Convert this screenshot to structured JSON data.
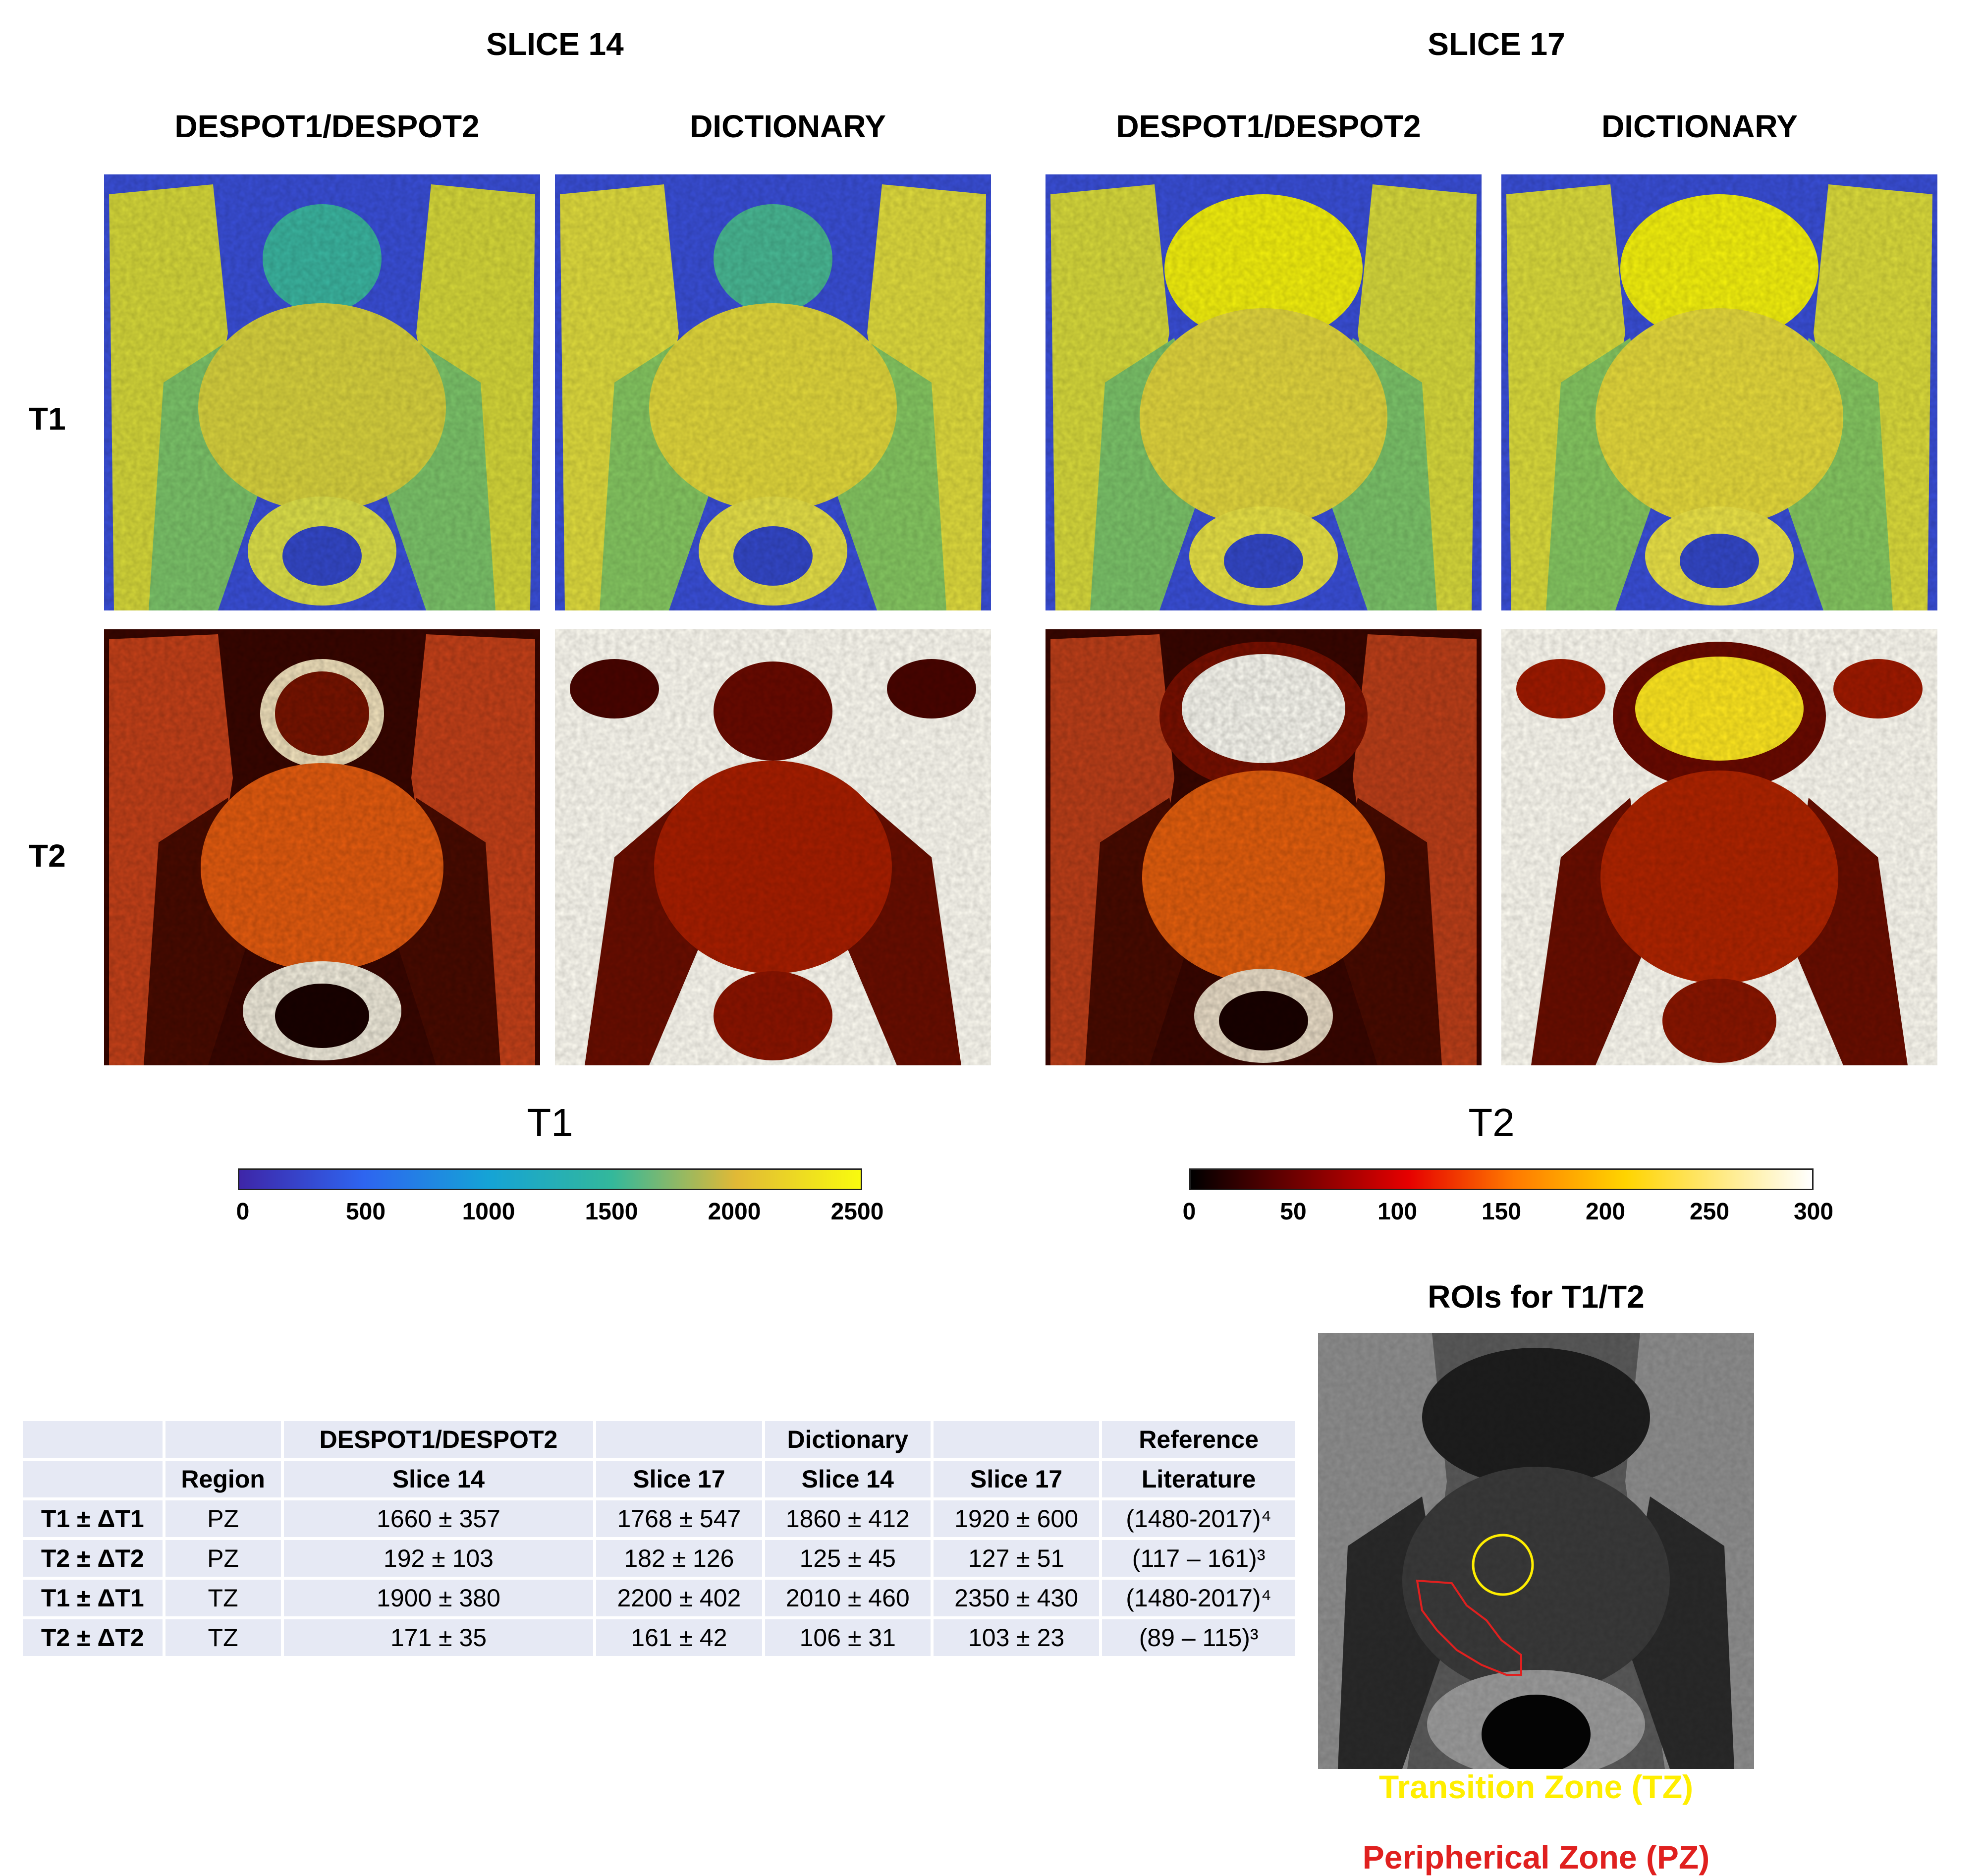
{
  "slices": {
    "left_title": "SLICE 14",
    "right_title": "SLICE 17",
    "col_labels": [
      "DESPOT1/DESPOT2",
      "DICTIONARY",
      "DESPOT1/DESPOT2",
      "DICTIONARY"
    ]
  },
  "rows": {
    "t1_label": "T1",
    "t2_label": "T2"
  },
  "colorbars": {
    "t1": {
      "title": "T1",
      "ticks": [
        "0",
        "500",
        "1000",
        "1500",
        "2000",
        "2500"
      ],
      "range": [
        0,
        2500
      ],
      "colormap": "parula"
    },
    "t2": {
      "title": "T2",
      "ticks": [
        "0",
        "50",
        "100",
        "150",
        "200",
        "250",
        "300"
      ],
      "range": [
        0,
        300
      ],
      "colormap": "hot"
    }
  },
  "table": {
    "header1": [
      "",
      "",
      "DESPOT1/DESPOT2",
      "",
      "Dictionary",
      "",
      "Reference"
    ],
    "header2": [
      "",
      "Region",
      "Slice 14",
      "Slice 17",
      "Slice 14",
      "Slice 17",
      "Literature"
    ],
    "rows": [
      [
        "T1 ± ΔT1",
        "PZ",
        "1660 ± 357",
        "1768 ± 547",
        "1860 ± 412",
        "1920 ± 600",
        "(1480-2017)⁴"
      ],
      [
        "T2 ± ΔT2",
        "PZ",
        "192 ± 103",
        "182 ± 126",
        "125 ± 45",
        "127 ± 51",
        "(117 – 161)³"
      ],
      [
        "T1 ± ΔT1",
        "TZ",
        "1900 ± 380",
        "2200 ± 402",
        "2010 ± 460",
        "2350 ± 430",
        "(1480-2017)⁴"
      ],
      [
        "T2 ± ΔT2",
        "TZ",
        "171 ± 35",
        "161 ± 42",
        "106 ± 31",
        "103 ± 23",
        "(89 – 115)³"
      ]
    ]
  },
  "roi": {
    "title": "ROIs for T1/T2",
    "tz_label": "Transition Zone (TZ)",
    "pz_label": "Peripherical Zone (PZ)",
    "tz_color": "#ffee00",
    "pz_color": "#e0201f"
  }
}
